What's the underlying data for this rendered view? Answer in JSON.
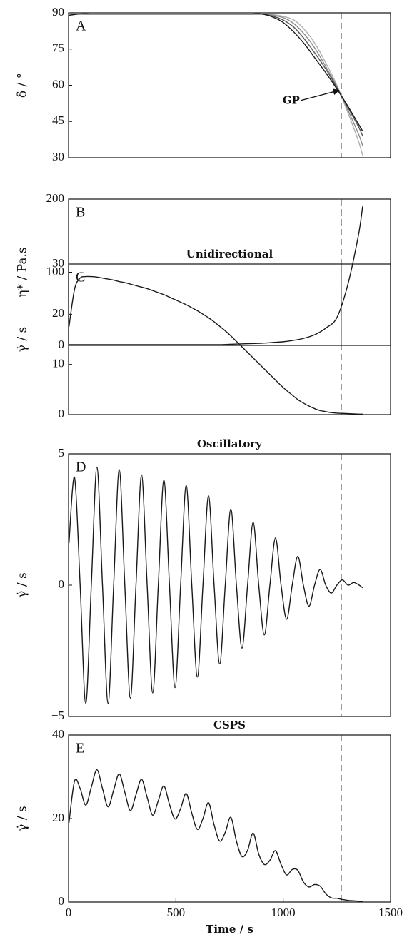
{
  "chart_data": [
    {
      "type": "line",
      "label": "A",
      "ylabel": "δ / °",
      "annotation": "GP",
      "x": [
        0,
        50,
        100,
        150,
        200,
        250,
        300,
        350,
        400,
        450,
        500,
        550,
        600,
        650,
        700,
        750,
        800,
        850,
        900,
        950,
        1000,
        1050,
        1100,
        1150,
        1200,
        1250,
        1300,
        1350,
        1370
      ],
      "series": [
        {
          "color": "#b0b0b0",
          "values": [
            89,
            89.5,
            89.5,
            89.5,
            89.5,
            89.5,
            89.5,
            89.5,
            89.5,
            89.5,
            89.5,
            89.5,
            89.5,
            89.5,
            89.5,
            89.5,
            89.5,
            89.5,
            89.5,
            89.3,
            88.5,
            87,
            83,
            77,
            69,
            60,
            49,
            37,
            31
          ]
        },
        {
          "color": "#8a8a8a",
          "values": [
            89,
            89.5,
            89.5,
            89.5,
            89.5,
            89.5,
            89.5,
            89.5,
            89.5,
            89.5,
            89.5,
            89.5,
            89.5,
            89.5,
            89.5,
            89.5,
            89.5,
            89.5,
            89.5,
            89,
            88,
            85.5,
            81,
            75,
            67.5,
            59.5,
            50,
            40,
            35
          ]
        },
        {
          "color": "#555555",
          "values": [
            89,
            89.5,
            89.5,
            89.5,
            89.5,
            89.5,
            89.5,
            89.5,
            89.5,
            89.5,
            89.5,
            89.5,
            89.5,
            89.5,
            89.5,
            89.5,
            89.5,
            89.5,
            89.5,
            88.7,
            87,
            84,
            79,
            73,
            66.5,
            59,
            51,
            43,
            39
          ]
        },
        {
          "color": "#1a1a1a",
          "values": [
            89,
            89.5,
            89.5,
            89.5,
            89.5,
            89.5,
            89.5,
            89.5,
            89.5,
            89.5,
            89.5,
            89.5,
            89.5,
            89.5,
            89.5,
            89.5,
            89.5,
            89.5,
            89.5,
            88.3,
            86,
            82,
            77,
            71,
            65,
            58.5,
            51.5,
            44,
            41
          ]
        }
      ],
      "xlim": [
        0,
        1500
      ],
      "ylim": [
        30,
        90
      ],
      "yticks": [
        30,
        45,
        60,
        75,
        90
      ],
      "vline": 1270
    },
    {
      "type": "line",
      "label": "B",
      "ylabel": "η* / Pa.s",
      "x": [
        0,
        50,
        100,
        150,
        200,
        250,
        300,
        350,
        400,
        450,
        500,
        550,
        600,
        650,
        700,
        750,
        800,
        850,
        900,
        950,
        1000,
        1050,
        1100,
        1150,
        1200,
        1250,
        1300,
        1350,
        1370
      ],
      "values": [
        1,
        1,
        1,
        1,
        1,
        1,
        1,
        1,
        1,
        1,
        1,
        1,
        1,
        1,
        1,
        1.5,
        2,
        2.5,
        3,
        4,
        5,
        7,
        10,
        15,
        24,
        38,
        82,
        150,
        190
      ],
      "color": "#1a1a1a",
      "xlim": [
        0,
        1500
      ],
      "ylim": [
        0,
        200
      ],
      "yticks": [
        0,
        100,
        200
      ],
      "vline": 1270
    },
    {
      "type": "line",
      "title": "Unidirectional",
      "label": "C",
      "ylabel": "γ̇ / s",
      "x": [
        2,
        28,
        54,
        80,
        106,
        132,
        158,
        184,
        210,
        236,
        262,
        288,
        314,
        340,
        366,
        392,
        418,
        444,
        470,
        496,
        522,
        548,
        574,
        600,
        626,
        652,
        678,
        704,
        730,
        756,
        782,
        808,
        834,
        860,
        886,
        912,
        938,
        964,
        990,
        1016,
        1042,
        1068,
        1094,
        1120,
        1146,
        1172,
        1198,
        1224,
        1250,
        1276,
        1302,
        1328,
        1354,
        1370
      ],
      "values": [
        17.5,
        25,
        27.2,
        27.5,
        27.5,
        27.4,
        27.2,
        27.0,
        26.8,
        26.5,
        26.3,
        26.0,
        25.7,
        25.4,
        25.1,
        24.7,
        24.3,
        23.9,
        23.4,
        22.9,
        22.4,
        21.9,
        21.3,
        20.7,
        20.0,
        19.3,
        18.5,
        17.6,
        16.7,
        15.7,
        14.6,
        13.5,
        12.4,
        11.3,
        10.2,
        9.1,
        8.0,
        6.9,
        5.8,
        4.8,
        3.9,
        3.0,
        2.3,
        1.7,
        1.2,
        0.8,
        0.6,
        0.4,
        0.3,
        0.25,
        0.2,
        0.15,
        0.1,
        0.1
      ],
      "color": "#1a1a1a",
      "xlim": [
        0,
        1500
      ],
      "ylim": [
        0,
        30
      ],
      "yticks": [
        0,
        10,
        20,
        30
      ],
      "vline": 1270
    },
    {
      "type": "line",
      "title": "Oscillatory",
      "label": "D",
      "ylabel": "γ̇ / s",
      "x": [
        2,
        28,
        54,
        80,
        106,
        132,
        158,
        184,
        210,
        236,
        262,
        288,
        314,
        340,
        366,
        392,
        418,
        444,
        470,
        496,
        522,
        548,
        574,
        600,
        626,
        652,
        678,
        704,
        730,
        756,
        782,
        808,
        834,
        860,
        886,
        912,
        938,
        964,
        990,
        1016,
        1042,
        1068,
        1094,
        1120,
        1146,
        1172,
        1198,
        1224,
        1250,
        1276,
        1302,
        1328,
        1354,
        1370
      ],
      "values": [
        1.6,
        4.1,
        0,
        -4.5,
        0,
        4.5,
        0,
        -4.5,
        0,
        4.4,
        0,
        -4.3,
        0,
        4.2,
        0,
        -4.1,
        0,
        4.0,
        0,
        -3.9,
        0,
        3.8,
        0,
        -3.5,
        0,
        3.4,
        0,
        -3.0,
        0,
        2.9,
        0,
        -2.4,
        0,
        2.4,
        0,
        -1.9,
        0,
        1.8,
        0,
        -1.3,
        0,
        1.1,
        0,
        -0.8,
        0,
        0.6,
        0,
        -0.3,
        0,
        0.2,
        0,
        0.1,
        0,
        -0.1
      ],
      "color": "#1a1a1a",
      "xlim": [
        0,
        1500
      ],
      "ylim": [
        -5,
        5
      ],
      "yticks": [
        {
          "value": -5,
          "label": "−5"
        },
        0,
        5
      ],
      "vline": 1270
    },
    {
      "type": "line",
      "title": "CSPS",
      "label": "E",
      "ylabel": "γ̇ / s",
      "xlabel": "Time / s",
      "x": [
        2,
        28,
        54,
        80,
        106,
        132,
        158,
        184,
        210,
        236,
        262,
        288,
        314,
        340,
        366,
        392,
        418,
        444,
        470,
        496,
        522,
        548,
        574,
        600,
        626,
        652,
        678,
        704,
        730,
        756,
        782,
        808,
        834,
        860,
        886,
        912,
        938,
        964,
        990,
        1016,
        1042,
        1068,
        1094,
        1120,
        1146,
        1172,
        1198,
        1224,
        1250,
        1276,
        1302,
        1328,
        1354,
        1370
      ],
      "values": [
        19,
        29.0,
        27.2,
        23.2,
        27.5,
        31.7,
        27.2,
        22.8,
        26.8,
        30.7,
        26.3,
        21.9,
        25.7,
        29.4,
        25.1,
        20.8,
        24.3,
        27.8,
        23.4,
        19.9,
        22.4,
        26.0,
        21.3,
        17.4,
        20.0,
        23.8,
        18.5,
        14.6,
        16.7,
        20.3,
        14.6,
        10.9,
        12.4,
        16.5,
        11.5,
        9.0,
        10.0,
        12.3,
        9.0,
        6.5,
        7.8,
        7.6,
        4.8,
        3.6,
        4.2,
        3.8,
        2.0,
        1.0,
        0.9,
        0.6,
        0.4,
        0.3,
        0.2,
        0.2
      ],
      "color": "#1a1a1a",
      "xlim": [
        0,
        1500
      ],
      "ylim": [
        0,
        40
      ],
      "yticks": [
        0,
        20,
        40
      ],
      "xticks": [
        0,
        500,
        1000,
        1500
      ],
      "vline": 1270
    }
  ]
}
